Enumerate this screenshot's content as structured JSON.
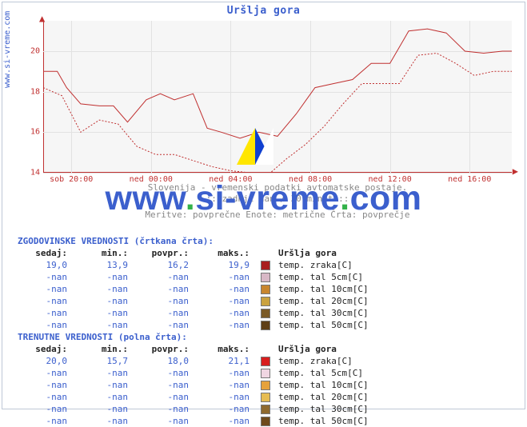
{
  "title": "Uršlja gora",
  "site_label": "www.si-vreme.com",
  "watermark": "www.si-vreme.com",
  "chart": {
    "type": "line",
    "background_color": "#f6f6f6",
    "grid_color": "#e2e2e2",
    "axis_color": "#c03030",
    "ylim": [
      14,
      21.5
    ],
    "yticks": [
      14,
      16,
      18,
      20
    ],
    "xticks": [
      "sob 20:00",
      "ned 00:00",
      "ned 04:00",
      "ned 08:00",
      "ned 12:00",
      "ned 16:00"
    ],
    "xtick_positions_pct": [
      6,
      23,
      40,
      57,
      74,
      91
    ],
    "series": [
      {
        "name": "trenutne",
        "style": "solid",
        "color": "#c03030",
        "points": [
          [
            0,
            19.0
          ],
          [
            3,
            19.0
          ],
          [
            5,
            18.2
          ],
          [
            8,
            17.4
          ],
          [
            12,
            17.3
          ],
          [
            15,
            17.3
          ],
          [
            18,
            16.5
          ],
          [
            22,
            17.6
          ],
          [
            25,
            17.9
          ],
          [
            28,
            17.6
          ],
          [
            32,
            17.9
          ],
          [
            35,
            16.2
          ],
          [
            38,
            16.0
          ],
          [
            42,
            15.7
          ],
          [
            46,
            16.0
          ],
          [
            50,
            15.8
          ],
          [
            54,
            16.9
          ],
          [
            58,
            18.2
          ],
          [
            62,
            18.4
          ],
          [
            66,
            18.6
          ],
          [
            70,
            19.4
          ],
          [
            74,
            19.4
          ],
          [
            78,
            21.0
          ],
          [
            82,
            21.1
          ],
          [
            86,
            20.9
          ],
          [
            90,
            20.0
          ],
          [
            94,
            19.9
          ],
          [
            98,
            20.0
          ],
          [
            100,
            20.0
          ]
        ]
      },
      {
        "name": "zgodovinske",
        "style": "dashed",
        "color": "#c03030",
        "points": [
          [
            0,
            18.2
          ],
          [
            4,
            17.8
          ],
          [
            8,
            16.0
          ],
          [
            12,
            16.6
          ],
          [
            16,
            16.4
          ],
          [
            20,
            15.3
          ],
          [
            24,
            14.9
          ],
          [
            28,
            14.9
          ],
          [
            32,
            14.6
          ],
          [
            36,
            14.3
          ],
          [
            40,
            14.1
          ],
          [
            44,
            14.0
          ],
          [
            48,
            13.9
          ],
          [
            52,
            14.7
          ],
          [
            56,
            15.4
          ],
          [
            60,
            16.3
          ],
          [
            64,
            17.4
          ],
          [
            68,
            18.4
          ],
          [
            72,
            18.4
          ],
          [
            76,
            18.4
          ],
          [
            80,
            19.8
          ],
          [
            84,
            19.9
          ],
          [
            88,
            19.4
          ],
          [
            92,
            18.8
          ],
          [
            96,
            19.0
          ],
          [
            100,
            19.0
          ]
        ]
      }
    ],
    "title_fontsize": 13,
    "tick_fontsize": 10
  },
  "caption": {
    "line1": "Slovenija - vremenski podatki avtomatske postaje.",
    "line2": ":: zadnji dan / 30 minut ::",
    "line3": "Meritve: povprečne  Enote: metrične  Črta: povprečje"
  },
  "legend_colors": {
    "hist": [
      "#a81e1e",
      "#d8b8c6",
      "#c8862e",
      "#caa23e",
      "#7a5a26",
      "#5e3f17"
    ],
    "curr": [
      "#d81e1e",
      "#f0d6e2",
      "#e6a23c",
      "#e6bc52",
      "#8f6a2e",
      "#6e4a1b"
    ]
  },
  "tables": {
    "hist": {
      "title": "ZGODOVINSKE VREDNOSTI (črtkana črta):",
      "cols": [
        "sedaj:",
        "min.:",
        "povpr.:",
        "maks.:"
      ],
      "station": "Uršlja gora",
      "rows": [
        {
          "v": [
            "19,0",
            "13,9",
            "16,2",
            "19,9"
          ],
          "label": "temp. zraka[C]"
        },
        {
          "v": [
            "-nan",
            "-nan",
            "-nan",
            "-nan"
          ],
          "label": "temp. tal  5cm[C]"
        },
        {
          "v": [
            "-nan",
            "-nan",
            "-nan",
            "-nan"
          ],
          "label": "temp. tal 10cm[C]"
        },
        {
          "v": [
            "-nan",
            "-nan",
            "-nan",
            "-nan"
          ],
          "label": "temp. tal 20cm[C]"
        },
        {
          "v": [
            "-nan",
            "-nan",
            "-nan",
            "-nan"
          ],
          "label": "temp. tal 30cm[C]"
        },
        {
          "v": [
            "-nan",
            "-nan",
            "-nan",
            "-nan"
          ],
          "label": "temp. tal 50cm[C]"
        }
      ]
    },
    "curr": {
      "title": "TRENUTNE VREDNOSTI (polna črta):",
      "cols": [
        "sedaj:",
        "min.:",
        "povpr.:",
        "maks.:"
      ],
      "station": "Uršlja gora",
      "rows": [
        {
          "v": [
            "20,0",
            "15,7",
            "18,0",
            "21,1"
          ],
          "label": "temp. zraka[C]"
        },
        {
          "v": [
            "-nan",
            "-nan",
            "-nan",
            "-nan"
          ],
          "label": "temp. tal  5cm[C]"
        },
        {
          "v": [
            "-nan",
            "-nan",
            "-nan",
            "-nan"
          ],
          "label": "temp. tal 10cm[C]"
        },
        {
          "v": [
            "-nan",
            "-nan",
            "-nan",
            "-nan"
          ],
          "label": "temp. tal 20cm[C]"
        },
        {
          "v": [
            "-nan",
            "-nan",
            "-nan",
            "-nan"
          ],
          "label": "temp. tal 30cm[C]"
        },
        {
          "v": [
            "-nan",
            "-nan",
            "-nan",
            "-nan"
          ],
          "label": "temp. tal 50cm[C]"
        }
      ]
    }
  }
}
